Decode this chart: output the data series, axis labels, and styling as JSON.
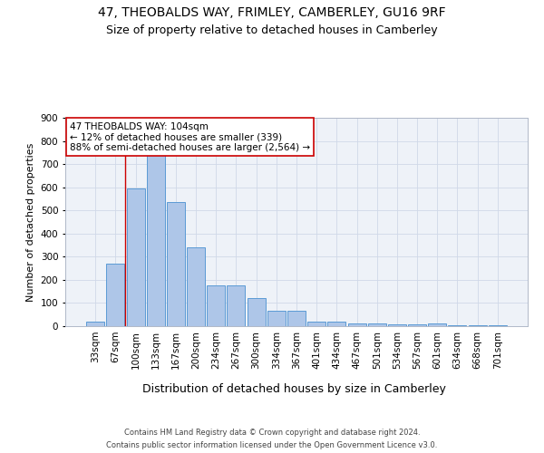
{
  "title1": "47, THEOBALDS WAY, FRIMLEY, CAMBERLEY, GU16 9RF",
  "title2": "Size of property relative to detached houses in Camberley",
  "xlabel": "Distribution of detached houses by size in Camberley",
  "ylabel": "Number of detached properties",
  "footer1": "Contains HM Land Registry data © Crown copyright and database right 2024.",
  "footer2": "Contains public sector information licensed under the Open Government Licence v3.0.",
  "categories": [
    "33sqm",
    "67sqm",
    "100sqm",
    "133sqm",
    "167sqm",
    "200sqm",
    "234sqm",
    "267sqm",
    "300sqm",
    "334sqm",
    "367sqm",
    "401sqm",
    "434sqm",
    "467sqm",
    "501sqm",
    "534sqm",
    "567sqm",
    "601sqm",
    "634sqm",
    "668sqm",
    "701sqm"
  ],
  "values": [
    20,
    270,
    595,
    740,
    535,
    340,
    175,
    175,
    120,
    65,
    65,
    20,
    20,
    10,
    10,
    8,
    6,
    10,
    2,
    2,
    2
  ],
  "bar_color": "#aec6e8",
  "bar_edge_color": "#5b9bd5",
  "vline_index": 2,
  "vline_color": "#cc0000",
  "annotation_text": "47 THEOBALDS WAY: 104sqm\n← 12% of detached houses are smaller (339)\n88% of semi-detached houses are larger (2,564) →",
  "annotation_box_color": "#ffffff",
  "annotation_edge_color": "#cc0000",
  "ylim": [
    0,
    900
  ],
  "yticks": [
    0,
    100,
    200,
    300,
    400,
    500,
    600,
    700,
    800,
    900
  ],
  "grid_color": "#d0d8e8",
  "bg_color": "#eef2f8",
  "title1_fontsize": 10,
  "title2_fontsize": 9,
  "xlabel_fontsize": 9,
  "ylabel_fontsize": 8,
  "tick_fontsize": 7.5,
  "annotation_fontsize": 7.5,
  "footer_fontsize": 6
}
